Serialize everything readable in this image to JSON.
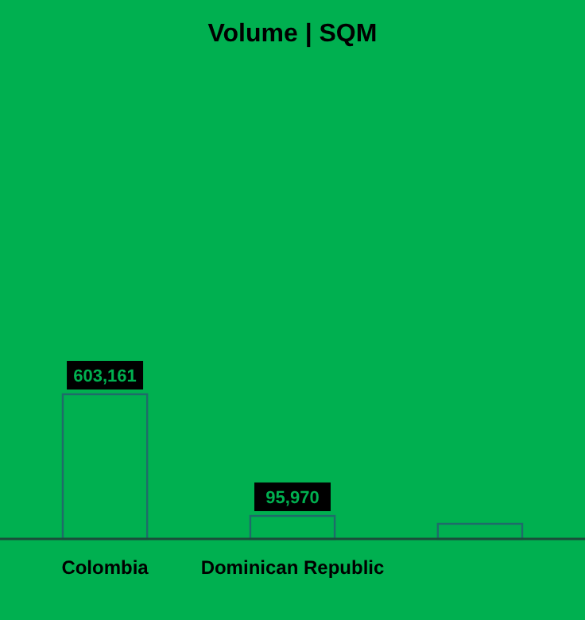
{
  "chart_data": {
    "type": "bar",
    "title": "Volume | SQM",
    "categories": [
      "Colombia",
      "Dominican Republic",
      null
    ],
    "series": [
      {
        "color": "#00b050",
        "values": [
          603161,
          95970,
          63000
        ],
        "value_labels": [
          "603,161",
          "95,970",
          null
        ]
      }
    ]
  }
}
